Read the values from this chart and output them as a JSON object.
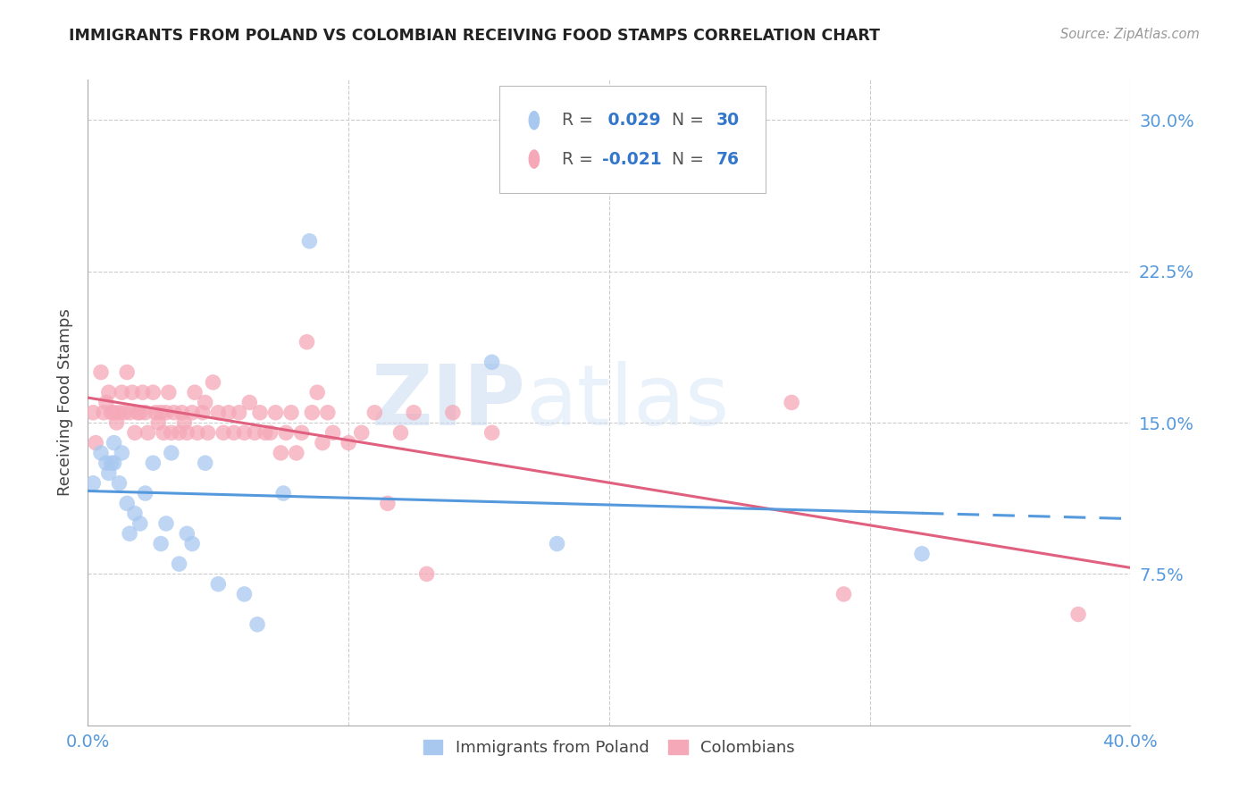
{
  "title": "IMMIGRANTS FROM POLAND VS COLOMBIAN RECEIVING FOOD STAMPS CORRELATION CHART",
  "source": "Source: ZipAtlas.com",
  "ylabel": "Receiving Food Stamps",
  "ytick_labels": [
    "30.0%",
    "22.5%",
    "15.0%",
    "7.5%"
  ],
  "ytick_values": [
    0.3,
    0.225,
    0.15,
    0.075
  ],
  "xlim": [
    0.0,
    0.4
  ],
  "ylim": [
    0.0,
    0.32
  ],
  "color_poland": "#a8c8f0",
  "color_colombia": "#f5a8b8",
  "trendline_poland_color": "#5599dd",
  "trendline_colombia_color": "#e06080",
  "watermark_zip": "ZIP",
  "watermark_atlas": "atlas",
  "poland_x": [
    0.002,
    0.005,
    0.007,
    0.008,
    0.009,
    0.01,
    0.01,
    0.012,
    0.013,
    0.015,
    0.016,
    0.018,
    0.02,
    0.022,
    0.025,
    0.028,
    0.03,
    0.032,
    0.035,
    0.038,
    0.04,
    0.045,
    0.05,
    0.06,
    0.065,
    0.075,
    0.085,
    0.155,
    0.18,
    0.32
  ],
  "poland_y": [
    0.12,
    0.135,
    0.13,
    0.125,
    0.13,
    0.13,
    0.14,
    0.12,
    0.135,
    0.11,
    0.095,
    0.105,
    0.1,
    0.115,
    0.13,
    0.09,
    0.1,
    0.135,
    0.08,
    0.095,
    0.09,
    0.13,
    0.07,
    0.065,
    0.05,
    0.115,
    0.24,
    0.18,
    0.09,
    0.085
  ],
  "colombia_x": [
    0.002,
    0.003,
    0.005,
    0.006,
    0.007,
    0.008,
    0.009,
    0.01,
    0.011,
    0.012,
    0.013,
    0.014,
    0.015,
    0.016,
    0.017,
    0.018,
    0.019,
    0.02,
    0.021,
    0.022,
    0.023,
    0.025,
    0.026,
    0.027,
    0.028,
    0.029,
    0.03,
    0.031,
    0.032,
    0.033,
    0.035,
    0.036,
    0.037,
    0.038,
    0.04,
    0.041,
    0.042,
    0.044,
    0.045,
    0.046,
    0.048,
    0.05,
    0.052,
    0.054,
    0.056,
    0.058,
    0.06,
    0.062,
    0.064,
    0.066,
    0.068,
    0.07,
    0.072,
    0.074,
    0.076,
    0.078,
    0.08,
    0.082,
    0.084,
    0.086,
    0.088,
    0.09,
    0.092,
    0.094,
    0.1,
    0.105,
    0.11,
    0.115,
    0.12,
    0.125,
    0.13,
    0.14,
    0.155,
    0.27,
    0.29,
    0.38
  ],
  "colombia_y": [
    0.155,
    0.14,
    0.175,
    0.155,
    0.16,
    0.165,
    0.155,
    0.155,
    0.15,
    0.155,
    0.165,
    0.155,
    0.175,
    0.155,
    0.165,
    0.145,
    0.155,
    0.155,
    0.165,
    0.155,
    0.145,
    0.165,
    0.155,
    0.15,
    0.155,
    0.145,
    0.155,
    0.165,
    0.145,
    0.155,
    0.145,
    0.155,
    0.15,
    0.145,
    0.155,
    0.165,
    0.145,
    0.155,
    0.16,
    0.145,
    0.17,
    0.155,
    0.145,
    0.155,
    0.145,
    0.155,
    0.145,
    0.16,
    0.145,
    0.155,
    0.145,
    0.145,
    0.155,
    0.135,
    0.145,
    0.155,
    0.135,
    0.145,
    0.19,
    0.155,
    0.165,
    0.14,
    0.155,
    0.145,
    0.14,
    0.145,
    0.155,
    0.11,
    0.145,
    0.155,
    0.075,
    0.155,
    0.145,
    0.16,
    0.065,
    0.055
  ],
  "legend_r1_val": " 0.029",
  "legend_r1_n": "30",
  "legend_r2_val": "-0.021",
  "legend_r2_n": "76"
}
